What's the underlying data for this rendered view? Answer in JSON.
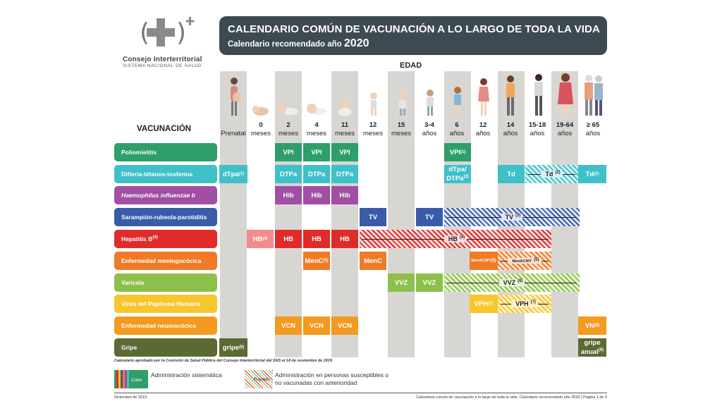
{
  "logo": {
    "name": "Consejo Interterritorial",
    "subname": "SISTEMA NACIONAL DE SALUD"
  },
  "header": {
    "title": "CALENDARIO COMÚN DE VACUNACIÓN A LO LARGO DE TODA LA VIDA",
    "subtitle": "Calendario recomendado año",
    "year": "2020",
    "color": "#3d4a52"
  },
  "table": {
    "age_title": "EDAD",
    "vaccine_title": "VACUNACIÓN",
    "ages": [
      {
        "top": "",
        "bottom": "Prenatal"
      },
      {
        "top": "0",
        "bottom": "meses"
      },
      {
        "top": "2",
        "bottom": "meses"
      },
      {
        "top": "4",
        "bottom": "meses"
      },
      {
        "top": "11",
        "bottom": "meses"
      },
      {
        "top": "12",
        "bottom": "meses"
      },
      {
        "top": "15",
        "bottom": "meses"
      },
      {
        "top": "3-4",
        "bottom": "años"
      },
      {
        "top": "6",
        "bottom": "años"
      },
      {
        "top": "12",
        "bottom": "años"
      },
      {
        "top": "14",
        "bottom": "años"
      },
      {
        "top": "15-18",
        "bottom": "años"
      },
      {
        "top": "19-64",
        "bottom": "años"
      },
      {
        "top": "≥ 65",
        "bottom": "años"
      }
    ],
    "rows": [
      {
        "label": "Poliomielitis",
        "color": "#2e9e6b"
      },
      {
        "label": "Difteria-tétanos-tosferina",
        "color": "#3fc0c9"
      },
      {
        "label": "Haemophilus influenzae b",
        "color": "#a04fa4"
      },
      {
        "label": "Sarampión-rubeola-parotiditis",
        "color": "#3a5ba8"
      },
      {
        "label": "Hepatitis B",
        "color": "#e12a2a"
      },
      {
        "label": "Enfermedad meningocócica",
        "color": "#f07a26"
      },
      {
        "label": "Varicela",
        "color": "#8dc04a"
      },
      {
        "label": "Virus del Papiloma Humano",
        "color": "#f7c52c"
      },
      {
        "label": "Enfermedad neumocócica",
        "color": "#f39a1f"
      },
      {
        "label": "Gripe",
        "color": "#5a6a33"
      }
    ],
    "cells": {
      "polio": "VPI",
      "polio_6": "VPI",
      "polio_6_note": "(1)",
      "dtpa_pre": "dTpa",
      "dtpa_pre_note": "(1)",
      "dtpa": "DTPa",
      "dtpa6_a": "dTpa/",
      "dtpa6_b": "DTPa",
      "dtpa6_note": "(2)",
      "td14": "Td",
      "td_band": "Td",
      "td_band_note": "(2)",
      "td65": "Td",
      "td65_note": "(2)",
      "hib": "Hib",
      "tv": "TV",
      "tv_band": "TV",
      "tv_band_note": "(3)",
      "hb0": "HB",
      "hb0_note": "(4)",
      "hb": "HB",
      "hb_band": "HB",
      "hb_band_note": "(4)",
      "menc": "MenC",
      "menc_note": "(5)",
      "menc12": "MenC",
      "menacwy": "MenACWY",
      "menacwy_note": "(5)",
      "menacwy_band": "MenACWY",
      "menacwy_band_note": "(5)",
      "vvz": "VVZ",
      "vvz_band": "VVZ",
      "vvz_band_note": "(6)",
      "vph": "VPH",
      "vph_note": "(7)",
      "vph_band": "VPH",
      "vph_band_note": "(7)",
      "vcn": "VCN",
      "vn": "VN",
      "vn_note": "(8)",
      "gripe": "gripe",
      "gripe_note": "(9)",
      "gripe65_a": "gripe",
      "gripe65_b": "anual",
      "gripe65_note": "(9)"
    }
  },
  "approval": "Calendario aprobado por la Comisión de Salud Pública del Consejo Interterritorial del SNS el 14 de noviembre de 2019",
  "legend": {
    "color_label": "Color",
    "color_text": "Administración sistemática",
    "hatch_label": "Rayado",
    "hatch_text_1": "Administración en personas susceptibles o",
    "hatch_text_2": "no vacunadas con anterioridad"
  },
  "footer": {
    "date": "Diciembre de 2019",
    "right": "Calendario común de vacunación a lo largo de toda la vida. Calendario recomendado año 2020  |  Página 1 de 3"
  }
}
